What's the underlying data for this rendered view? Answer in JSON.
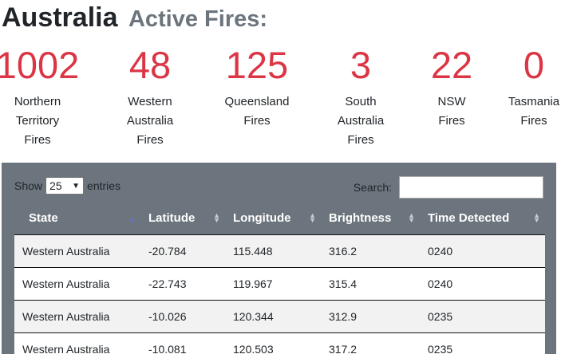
{
  "header": {
    "title": "Australia",
    "subtitle": "Active Fires:"
  },
  "stats": [
    {
      "value": "1002",
      "label": "Northern Territory Fires"
    },
    {
      "value": "48",
      "label": "Western Australia Fires"
    },
    {
      "value": "125",
      "label": "Queensland Fires"
    },
    {
      "value": "3",
      "label": "South Australia Fires"
    },
    {
      "value": "22",
      "label": "NSW Fires"
    },
    {
      "value": "0",
      "label": "Tasmania Fires"
    }
  ],
  "colors": {
    "accent": "#dc3545",
    "panel": "#6c757d"
  },
  "table_controls": {
    "show_label": "Show",
    "page_size": "25",
    "entries_label": "entries",
    "search_label": "Search:",
    "search_value": ""
  },
  "table": {
    "columns": [
      "State",
      "Latitude",
      "Longitude",
      "Brightness",
      "Time Detected"
    ],
    "rows": [
      [
        "Western Australia",
        "-20.784",
        "115.448",
        "316.2",
        "0240"
      ],
      [
        "Western Australia",
        "-22.743",
        "119.967",
        "315.4",
        "0240"
      ],
      [
        "Western Australia",
        "-10.026",
        "120.344",
        "312.9",
        "0235"
      ],
      [
        "Western Australia",
        "-10.081",
        "120.503",
        "317.2",
        "0235"
      ]
    ]
  }
}
